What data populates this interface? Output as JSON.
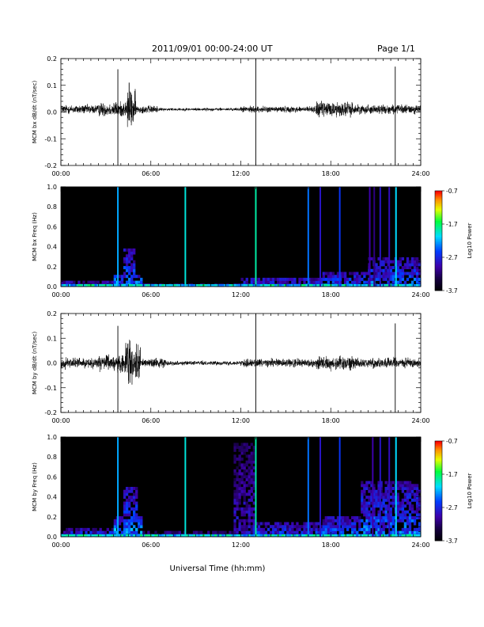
{
  "header": {
    "title": "2011/09/01  00:00-24:00 UT",
    "page": "Page 1/1"
  },
  "xlabel": "Universal Time (hh:mm)",
  "chart_data": [
    {
      "type": "line",
      "ylabel": "MCM bx dB/dt (nT/sec)",
      "xlim": [
        0,
        24
      ],
      "ylim": [
        -0.2,
        0.2
      ],
      "x_ticks": [
        "00:00",
        "06:00",
        "12:00",
        "18:00",
        "24:00"
      ],
      "y_ticks": [
        "-0.2",
        "-0.1",
        "0.0",
        "0.1",
        "0.2"
      ],
      "baseline": 0.01,
      "noise_profile": [
        {
          "start": 0.0,
          "end": 2.5,
          "amplitude": 0.012
        },
        {
          "start": 2.5,
          "end": 3.5,
          "amplitude": 0.018
        },
        {
          "start": 3.5,
          "end": 4.4,
          "amplitude": 0.02
        },
        {
          "start": 4.4,
          "end": 5.0,
          "amplitude": 0.05
        },
        {
          "start": 5.0,
          "end": 6.5,
          "amplitude": 0.01
        },
        {
          "start": 6.5,
          "end": 12.0,
          "amplitude": 0.004
        },
        {
          "start": 12.0,
          "end": 17.0,
          "amplitude": 0.008
        },
        {
          "start": 17.0,
          "end": 19.5,
          "amplitude": 0.02
        },
        {
          "start": 19.5,
          "end": 24.0,
          "amplitude": 0.012
        }
      ],
      "spikes": [
        {
          "x": 3.8,
          "high": 0.16,
          "low": -0.2
        },
        {
          "x": 4.55,
          "high": 0.11,
          "low": -0.03
        },
        {
          "x": 13.0,
          "high": 0.21,
          "low": -0.2
        },
        {
          "x": 22.3,
          "high": 0.17,
          "low": -0.2
        }
      ]
    },
    {
      "type": "heatmap",
      "ylabel": "MCM bx Freq (Hz)",
      "xlim": [
        0,
        24
      ],
      "ylim": [
        0,
        1.0
      ],
      "x_ticks": [
        "00:00",
        "06:00",
        "12:00",
        "18:00",
        "24:00"
      ],
      "y_ticks": [
        "0.0",
        "0.2",
        "0.4",
        "0.6",
        "0.8",
        "1.0"
      ],
      "colorbar": {
        "label": "Log10 Power",
        "min": -3.7,
        "max": -0.7,
        "ticks": [
          "-0.7",
          "-1.7",
          "-2.7",
          "-3.7"
        ]
      },
      "activity": [
        {
          "start": 0.0,
          "end": 3.5,
          "fmax": 0.05,
          "level": 0.4
        },
        {
          "start": 3.5,
          "end": 5.5,
          "fmax": 0.12,
          "level": 0.55
        },
        {
          "start": 4.1,
          "end": 5.0,
          "fmax": 0.38,
          "level": 0.45
        },
        {
          "start": 5.5,
          "end": 12.0,
          "fmax": 0.03,
          "level": 0.3
        },
        {
          "start": 12.0,
          "end": 17.5,
          "fmax": 0.1,
          "level": 0.4
        },
        {
          "start": 17.5,
          "end": 20.5,
          "fmax": 0.15,
          "level": 0.45
        },
        {
          "start": 20.5,
          "end": 24.0,
          "fmax": 0.28,
          "level": 0.45
        }
      ],
      "lines": [
        {
          "x": 3.8,
          "level": 0.5
        },
        {
          "x": 8.3,
          "level": 0.58
        },
        {
          "x": 13.0,
          "level": 0.62
        },
        {
          "x": 16.5,
          "level": 0.45
        },
        {
          "x": 17.3,
          "level": 0.3
        },
        {
          "x": 18.6,
          "level": 0.38
        },
        {
          "x": 20.6,
          "level": 0.25
        },
        {
          "x": 20.9,
          "level": 0.2
        },
        {
          "x": 21.3,
          "level": 0.3
        },
        {
          "x": 21.9,
          "level": 0.28
        },
        {
          "x": 22.35,
          "level": 0.55
        }
      ]
    },
    {
      "type": "line",
      "ylabel": "MCM by dB/dt (nT/sec)",
      "xlim": [
        0,
        24
      ],
      "ylim": [
        -0.2,
        0.2
      ],
      "x_ticks": [
        "00:00",
        "06:00",
        "12:00",
        "18:00",
        "24:00"
      ],
      "y_ticks": [
        "-0.2",
        "-0.1",
        "0.0",
        "0.1",
        "0.2"
      ],
      "baseline": 0.0,
      "noise_profile": [
        {
          "start": 0.0,
          "end": 2.5,
          "amplitude": 0.015
        },
        {
          "start": 2.5,
          "end": 3.7,
          "amplitude": 0.022
        },
        {
          "start": 3.7,
          "end": 4.3,
          "amplitude": 0.03
        },
        {
          "start": 4.3,
          "end": 5.3,
          "amplitude": 0.055
        },
        {
          "start": 5.3,
          "end": 7.0,
          "amplitude": 0.012
        },
        {
          "start": 7.0,
          "end": 12.0,
          "amplitude": 0.006
        },
        {
          "start": 12.0,
          "end": 17.0,
          "amplitude": 0.012
        },
        {
          "start": 17.0,
          "end": 19.5,
          "amplitude": 0.022
        },
        {
          "start": 19.5,
          "end": 24.0,
          "amplitude": 0.014
        }
      ],
      "spikes": [
        {
          "x": 3.8,
          "high": 0.15,
          "low": -0.2
        },
        {
          "x": 4.6,
          "high": 0.09,
          "low": -0.08
        },
        {
          "x": 13.0,
          "high": 0.21,
          "low": -0.2
        },
        {
          "x": 22.3,
          "high": 0.16,
          "low": -0.2
        }
      ]
    },
    {
      "type": "heatmap",
      "ylabel": "MCM by Freq (Hz)",
      "xlim": [
        0,
        24
      ],
      "ylim": [
        0,
        1.0
      ],
      "x_ticks": [
        "00:00",
        "06:00",
        "12:00",
        "18:00",
        "24:00"
      ],
      "y_ticks": [
        "0.0",
        "0.2",
        "0.4",
        "0.6",
        "0.8",
        "1.0"
      ],
      "colorbar": {
        "label": "Log10 Power",
        "min": -3.7,
        "max": -0.7,
        "ticks": [
          "-0.7",
          "-1.7",
          "-2.7",
          "-3.7"
        ]
      },
      "activity": [
        {
          "start": 0.0,
          "end": 3.5,
          "fmax": 0.1,
          "level": 0.4
        },
        {
          "start": 3.5,
          "end": 5.5,
          "fmax": 0.2,
          "level": 0.55
        },
        {
          "start": 4.1,
          "end": 5.2,
          "fmax": 0.5,
          "level": 0.45
        },
        {
          "start": 5.5,
          "end": 11.5,
          "fmax": 0.05,
          "level": 0.3
        },
        {
          "start": 11.5,
          "end": 13.0,
          "fmax": 0.95,
          "level": 0.3
        },
        {
          "start": 13.0,
          "end": 17.5,
          "fmax": 0.15,
          "level": 0.4
        },
        {
          "start": 17.5,
          "end": 20.0,
          "fmax": 0.2,
          "level": 0.45
        },
        {
          "start": 20.0,
          "end": 24.0,
          "fmax": 0.55,
          "level": 0.45
        }
      ],
      "lines": [
        {
          "x": 3.8,
          "level": 0.5
        },
        {
          "x": 8.3,
          "level": 0.58
        },
        {
          "x": 13.0,
          "level": 0.62
        },
        {
          "x": 16.5,
          "level": 0.45
        },
        {
          "x": 17.3,
          "level": 0.3
        },
        {
          "x": 18.6,
          "level": 0.38
        },
        {
          "x": 20.8,
          "level": 0.25
        },
        {
          "x": 21.3,
          "level": 0.3
        },
        {
          "x": 21.9,
          "level": 0.28
        },
        {
          "x": 22.35,
          "level": 0.55
        }
      ]
    }
  ]
}
